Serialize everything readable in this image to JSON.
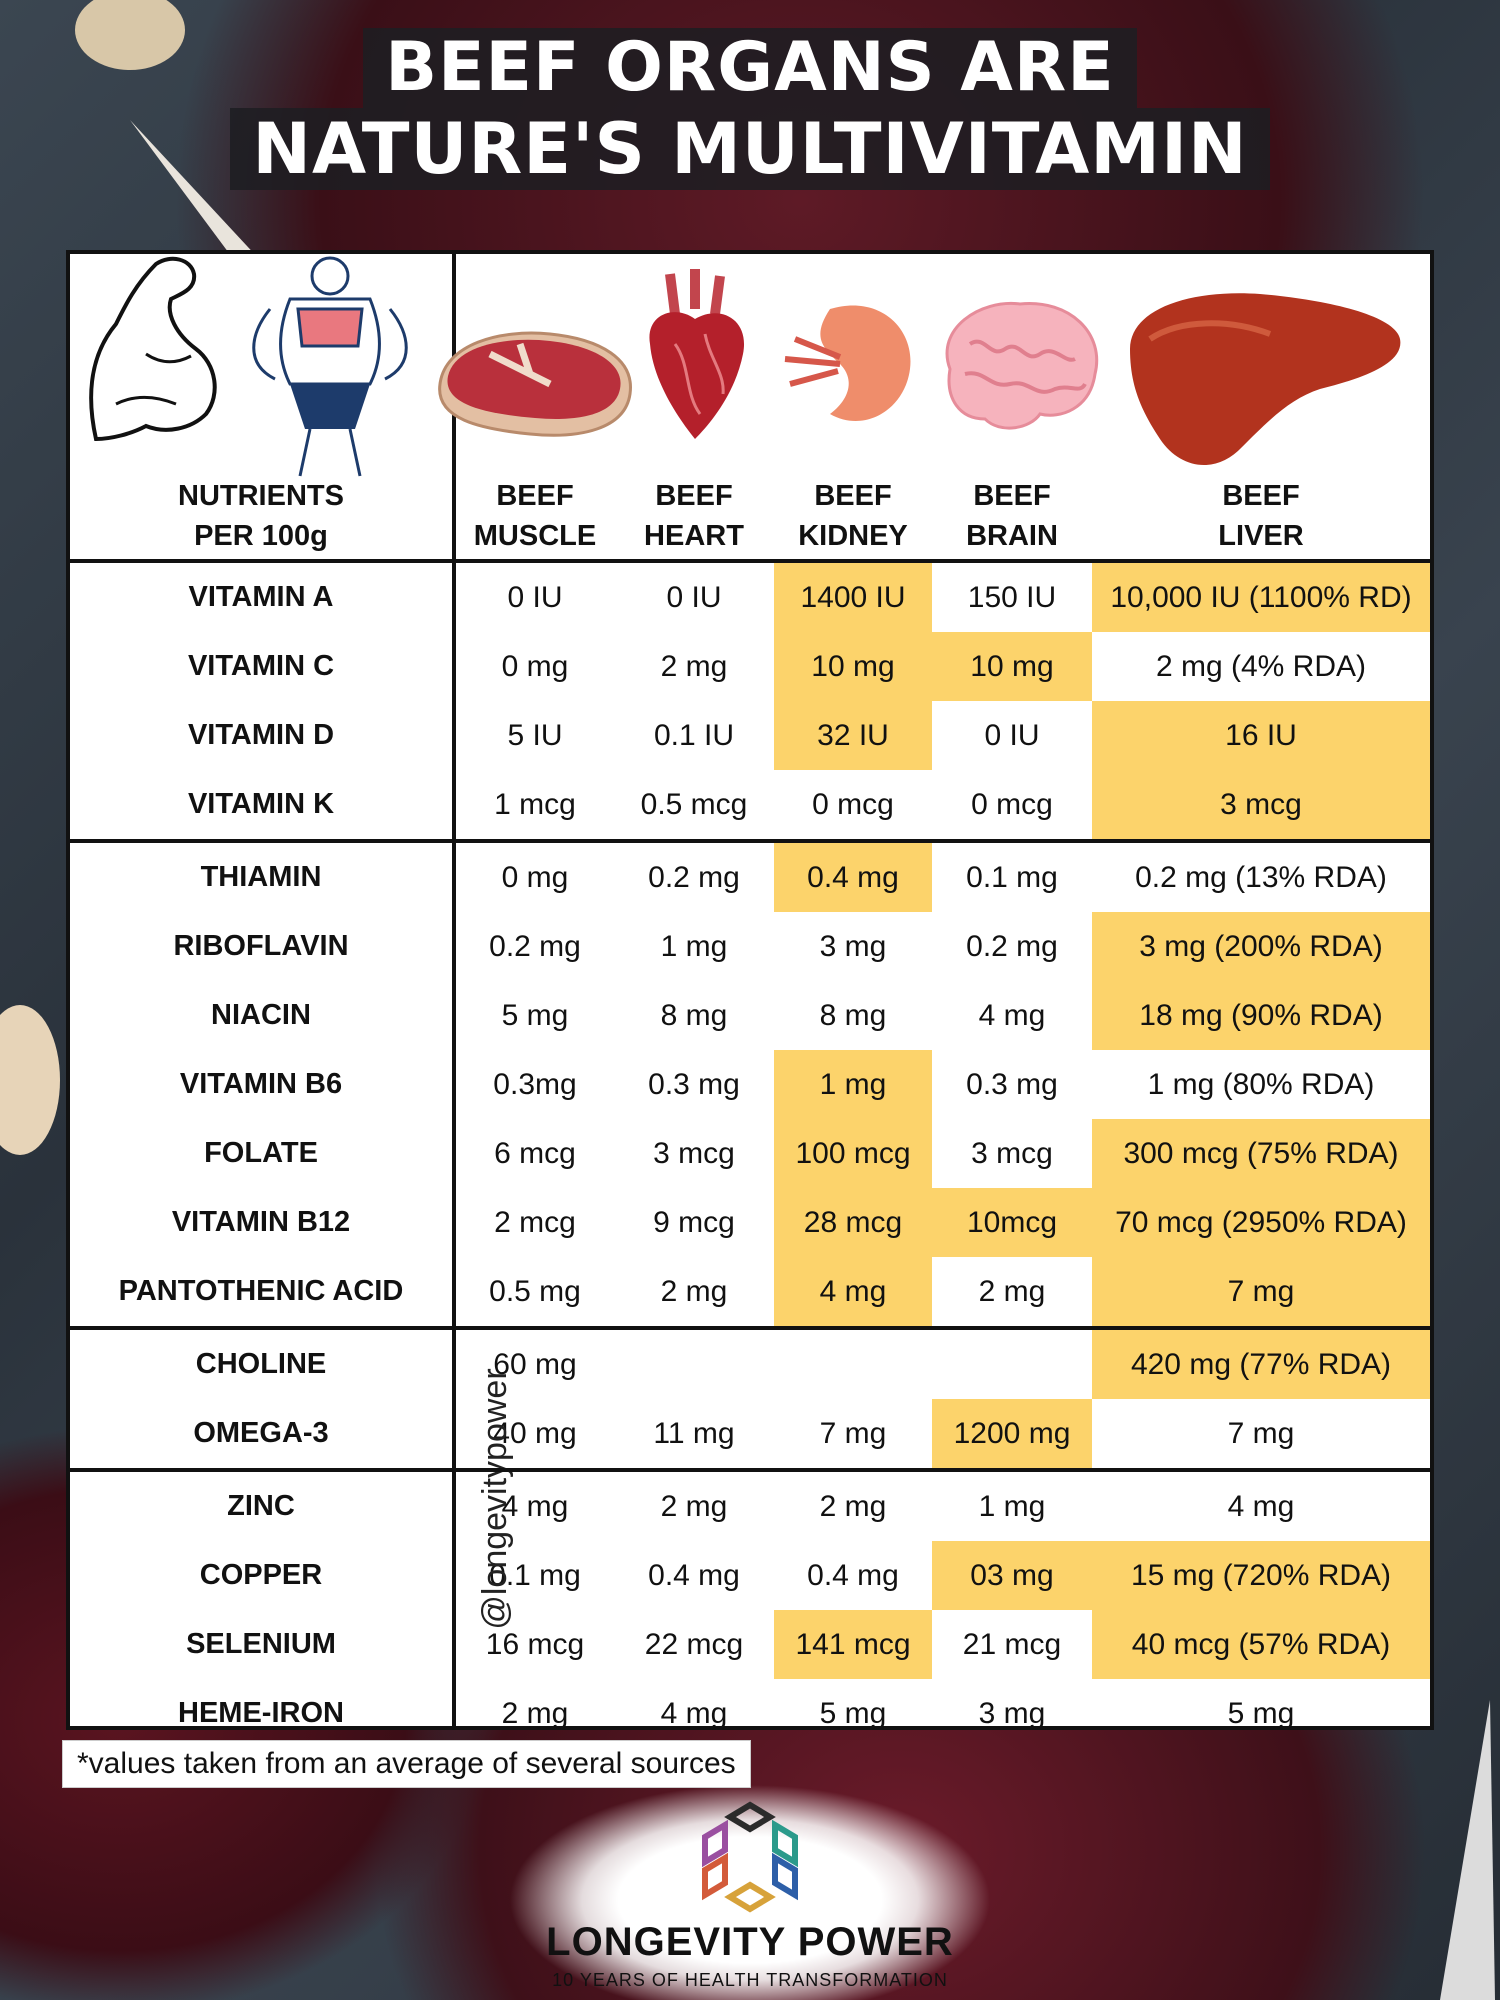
{
  "title": {
    "line1": "BEEF ORGANS ARE",
    "line2": "NATURE'S MULTIVITAMIN"
  },
  "icons": [
    "flexed-arm-icon",
    "fit-woman-icon",
    "steak-icon",
    "heart-organ-icon",
    "kidney-icon",
    "brain-icon",
    "liver-icon"
  ],
  "colors": {
    "highlight": "#fcd36b",
    "border": "#111111"
  },
  "table": {
    "headers": [
      [
        "NUTRIENTS",
        "PER 100g"
      ],
      [
        "BEEF",
        "MUSCLE"
      ],
      [
        "BEEF",
        "HEART"
      ],
      [
        "BEEF",
        "KIDNEY"
      ],
      [
        "BEEF",
        "BRAIN"
      ],
      [
        "BEEF",
        "LIVER"
      ]
    ],
    "watermark": "@longevitypower",
    "rows": [
      {
        "name": "VITAMIN A",
        "values": [
          "0 IU",
          "0 IU",
          "1400 IU",
          "150 IU",
          "10,000 IU (1100% RD)"
        ],
        "highlight": [
          false,
          false,
          true,
          false,
          true
        ]
      },
      {
        "name": "VITAMIN C",
        "values": [
          "0 mg",
          "2 mg",
          "10 mg",
          "10 mg",
          "2 mg (4% RDA)"
        ],
        "highlight": [
          false,
          false,
          true,
          true,
          false
        ]
      },
      {
        "name": "VITAMIN D",
        "values": [
          "5 IU",
          "0.1 IU",
          "32 IU",
          "0 IU",
          "16 IU"
        ],
        "highlight": [
          false,
          false,
          true,
          false,
          true
        ]
      },
      {
        "name": "VITAMIN K",
        "values": [
          "1 mcg",
          "0.5 mcg",
          "0 mcg",
          "0 mcg",
          "3 mcg"
        ],
        "highlight": [
          false,
          false,
          false,
          false,
          true
        ]
      },
      {
        "name": "THIAMIN",
        "values": [
          "0 mg",
          "0.2 mg",
          "0.4 mg",
          "0.1 mg",
          "0.2 mg (13% RDA)"
        ],
        "highlight": [
          false,
          false,
          true,
          false,
          false
        ]
      },
      {
        "name": "RIBOFLAVIN",
        "values": [
          "0.2 mg",
          "1 mg",
          "3 mg",
          "0.2 mg",
          "3 mg (200% RDA)"
        ],
        "highlight": [
          false,
          false,
          false,
          false,
          true
        ]
      },
      {
        "name": "NIACIN",
        "values": [
          "5 mg",
          "8 mg",
          "8 mg",
          "4 mg",
          "18 mg (90% RDA)"
        ],
        "highlight": [
          false,
          false,
          false,
          false,
          true
        ]
      },
      {
        "name": "VITAMIN B6",
        "values": [
          "0.3mg",
          "0.3 mg",
          "1 mg",
          "0.3 mg",
          "1 mg (80% RDA)"
        ],
        "highlight": [
          false,
          false,
          true,
          false,
          false
        ]
      },
      {
        "name": "FOLATE",
        "values": [
          "6 mcg",
          "3 mcg",
          "100 mcg",
          "3 mcg",
          "300 mcg (75% RDA)"
        ],
        "highlight": [
          false,
          false,
          true,
          false,
          true
        ]
      },
      {
        "name": "VITAMIN B12",
        "values": [
          "2 mcg",
          "9 mcg",
          "28 mcg",
          "10mcg",
          "70 mcg (2950% RDA)"
        ],
        "highlight": [
          false,
          false,
          true,
          true,
          true
        ]
      },
      {
        "name": "PANTOTHENIC ACID",
        "values": [
          "0.5 mg",
          "2 mg",
          "4 mg",
          "2 mg",
          "7 mg"
        ],
        "highlight": [
          false,
          false,
          true,
          false,
          true
        ]
      },
      {
        "name": "CHOLINE",
        "values": [
          "60 mg",
          "",
          "",
          "",
          "420 mg (77% RDA)"
        ],
        "highlight": [
          false,
          false,
          false,
          false,
          true
        ]
      },
      {
        "name": "OMEGA-3",
        "values": [
          "40 mg",
          "11 mg",
          "7 mg",
          "1200 mg",
          "7 mg"
        ],
        "highlight": [
          false,
          false,
          false,
          true,
          false
        ]
      },
      {
        "name": "ZINC",
        "values": [
          "4 mg",
          "2 mg",
          "2 mg",
          "1 mg",
          "4 mg"
        ],
        "highlight": [
          false,
          false,
          false,
          false,
          false
        ]
      },
      {
        "name": "COPPER",
        "values": [
          "0.1 mg",
          "0.4 mg",
          "0.4 mg",
          "03 mg",
          "15 mg (720% RDA)"
        ],
        "highlight": [
          false,
          false,
          false,
          true,
          true
        ]
      },
      {
        "name": "SELENIUM",
        "values": [
          "16 mcg",
          "22 mcg",
          "141 mcg",
          "21 mcg",
          "40 mcg (57% RDA)"
        ],
        "highlight": [
          false,
          false,
          true,
          false,
          true
        ]
      },
      {
        "name": "HEME-IRON",
        "values": [
          "2 mg",
          "4 mg",
          "5 mg",
          "3 mg",
          "5 mg"
        ],
        "highlight": [
          false,
          false,
          false,
          false,
          false
        ]
      }
    ]
  },
  "footnote": "*values taken from an average of several sources",
  "brand": {
    "name": "LONGEVITY POWER",
    "tagline": "10 YEARS OF HEALTH TRANSFORMATION"
  }
}
